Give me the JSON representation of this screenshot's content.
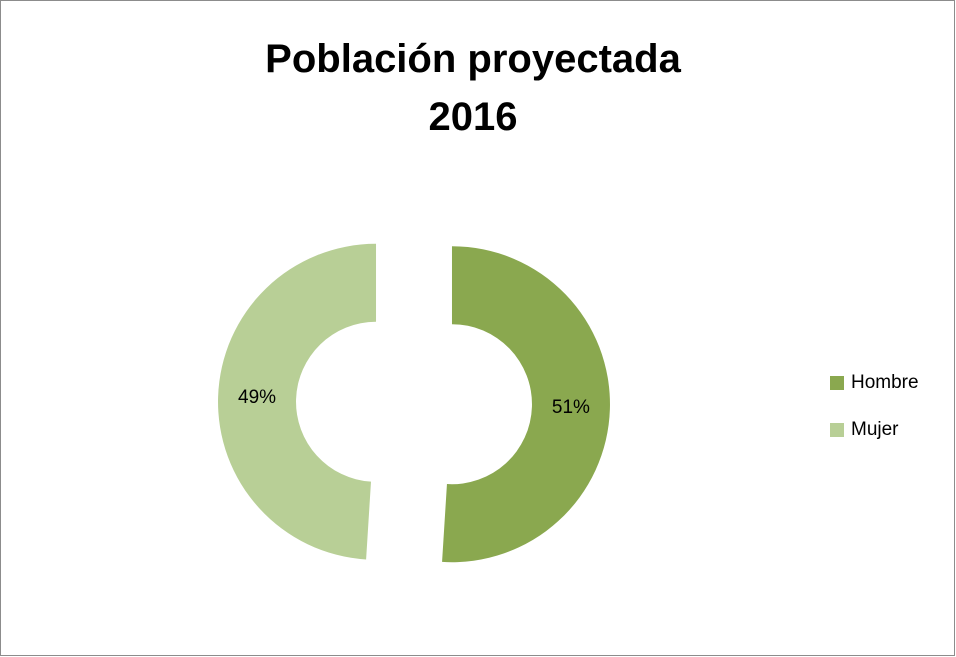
{
  "chart_data": {
    "type": "donut",
    "title": "Población proyectada 2016",
    "categories": [
      "Hombre",
      "Mujer"
    ],
    "values": [
      51,
      49
    ],
    "value_labels": [
      "51%",
      "49%"
    ],
    "colors": [
      "#8aa84f",
      "#b8cf96"
    ],
    "legend": "right"
  }
}
